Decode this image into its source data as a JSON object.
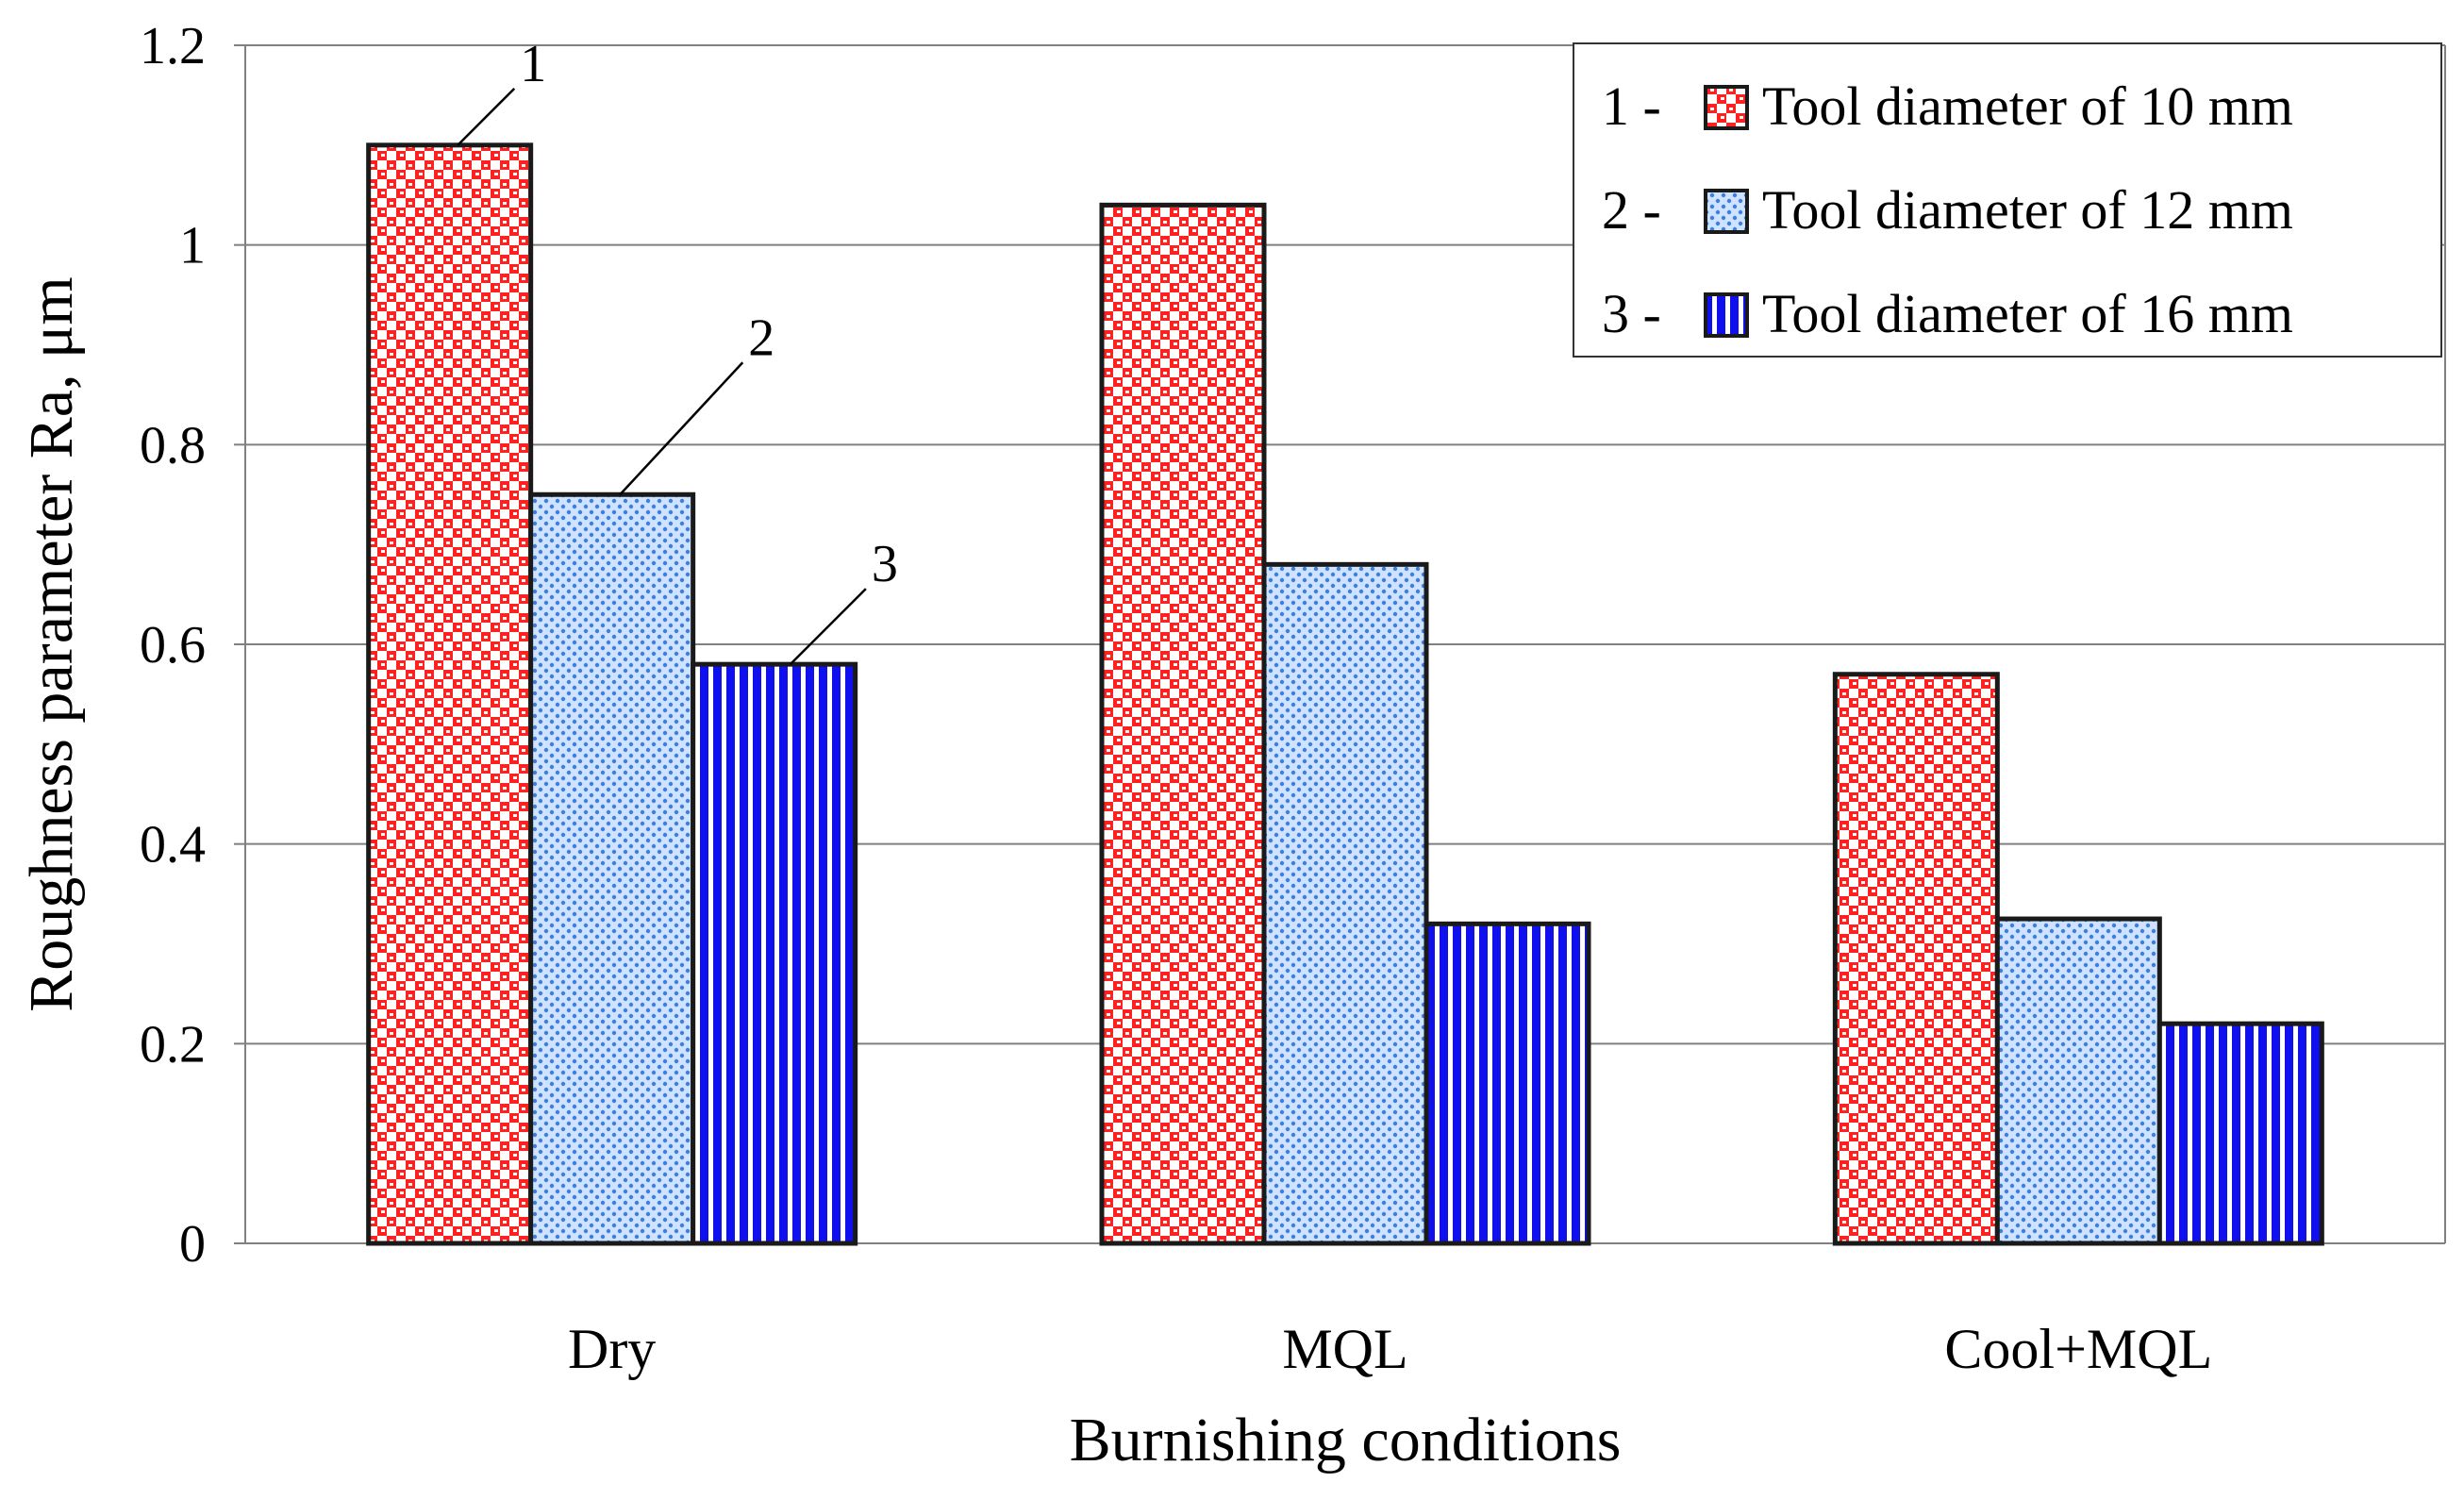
{
  "chart_data": {
    "type": "bar",
    "title": "",
    "xlabel": "Burnishing conditions",
    "ylabel": "Roughness parameter Ra, μm",
    "categories": [
      "Dry",
      "MQL",
      "Cool+MQL"
    ],
    "ylim": [
      0,
      1.2
    ],
    "yticks": [
      0,
      0.2,
      0.4,
      0.6,
      0.8,
      1,
      1.2
    ],
    "ytick_labels": [
      "0",
      "0.2",
      "0.4",
      "0.6",
      "0.8",
      "1",
      "1.2"
    ],
    "grid": true,
    "legend_position": "top-right",
    "series": [
      {
        "name": "Tool diameter of 10 mm",
        "prefix": "1 -",
        "callout": "1",
        "pattern": "red-checker",
        "values": [
          1.1,
          1.04,
          0.57
        ]
      },
      {
        "name": "Tool diameter of 12 mm",
        "prefix": "2 -",
        "callout": "2",
        "pattern": "blue-dots",
        "values": [
          0.75,
          0.68,
          0.325
        ]
      },
      {
        "name": "Tool diameter of 16 mm",
        "prefix": "3 -",
        "callout": "3",
        "pattern": "blue-stripes",
        "values": [
          0.58,
          0.32,
          0.22
        ]
      }
    ]
  },
  "colors": {
    "red": "#ff2020",
    "blue_light": "#3b7fe0",
    "blue_dark": "#1010ee",
    "grid": "#808080",
    "outline": "#1a1a1a"
  }
}
